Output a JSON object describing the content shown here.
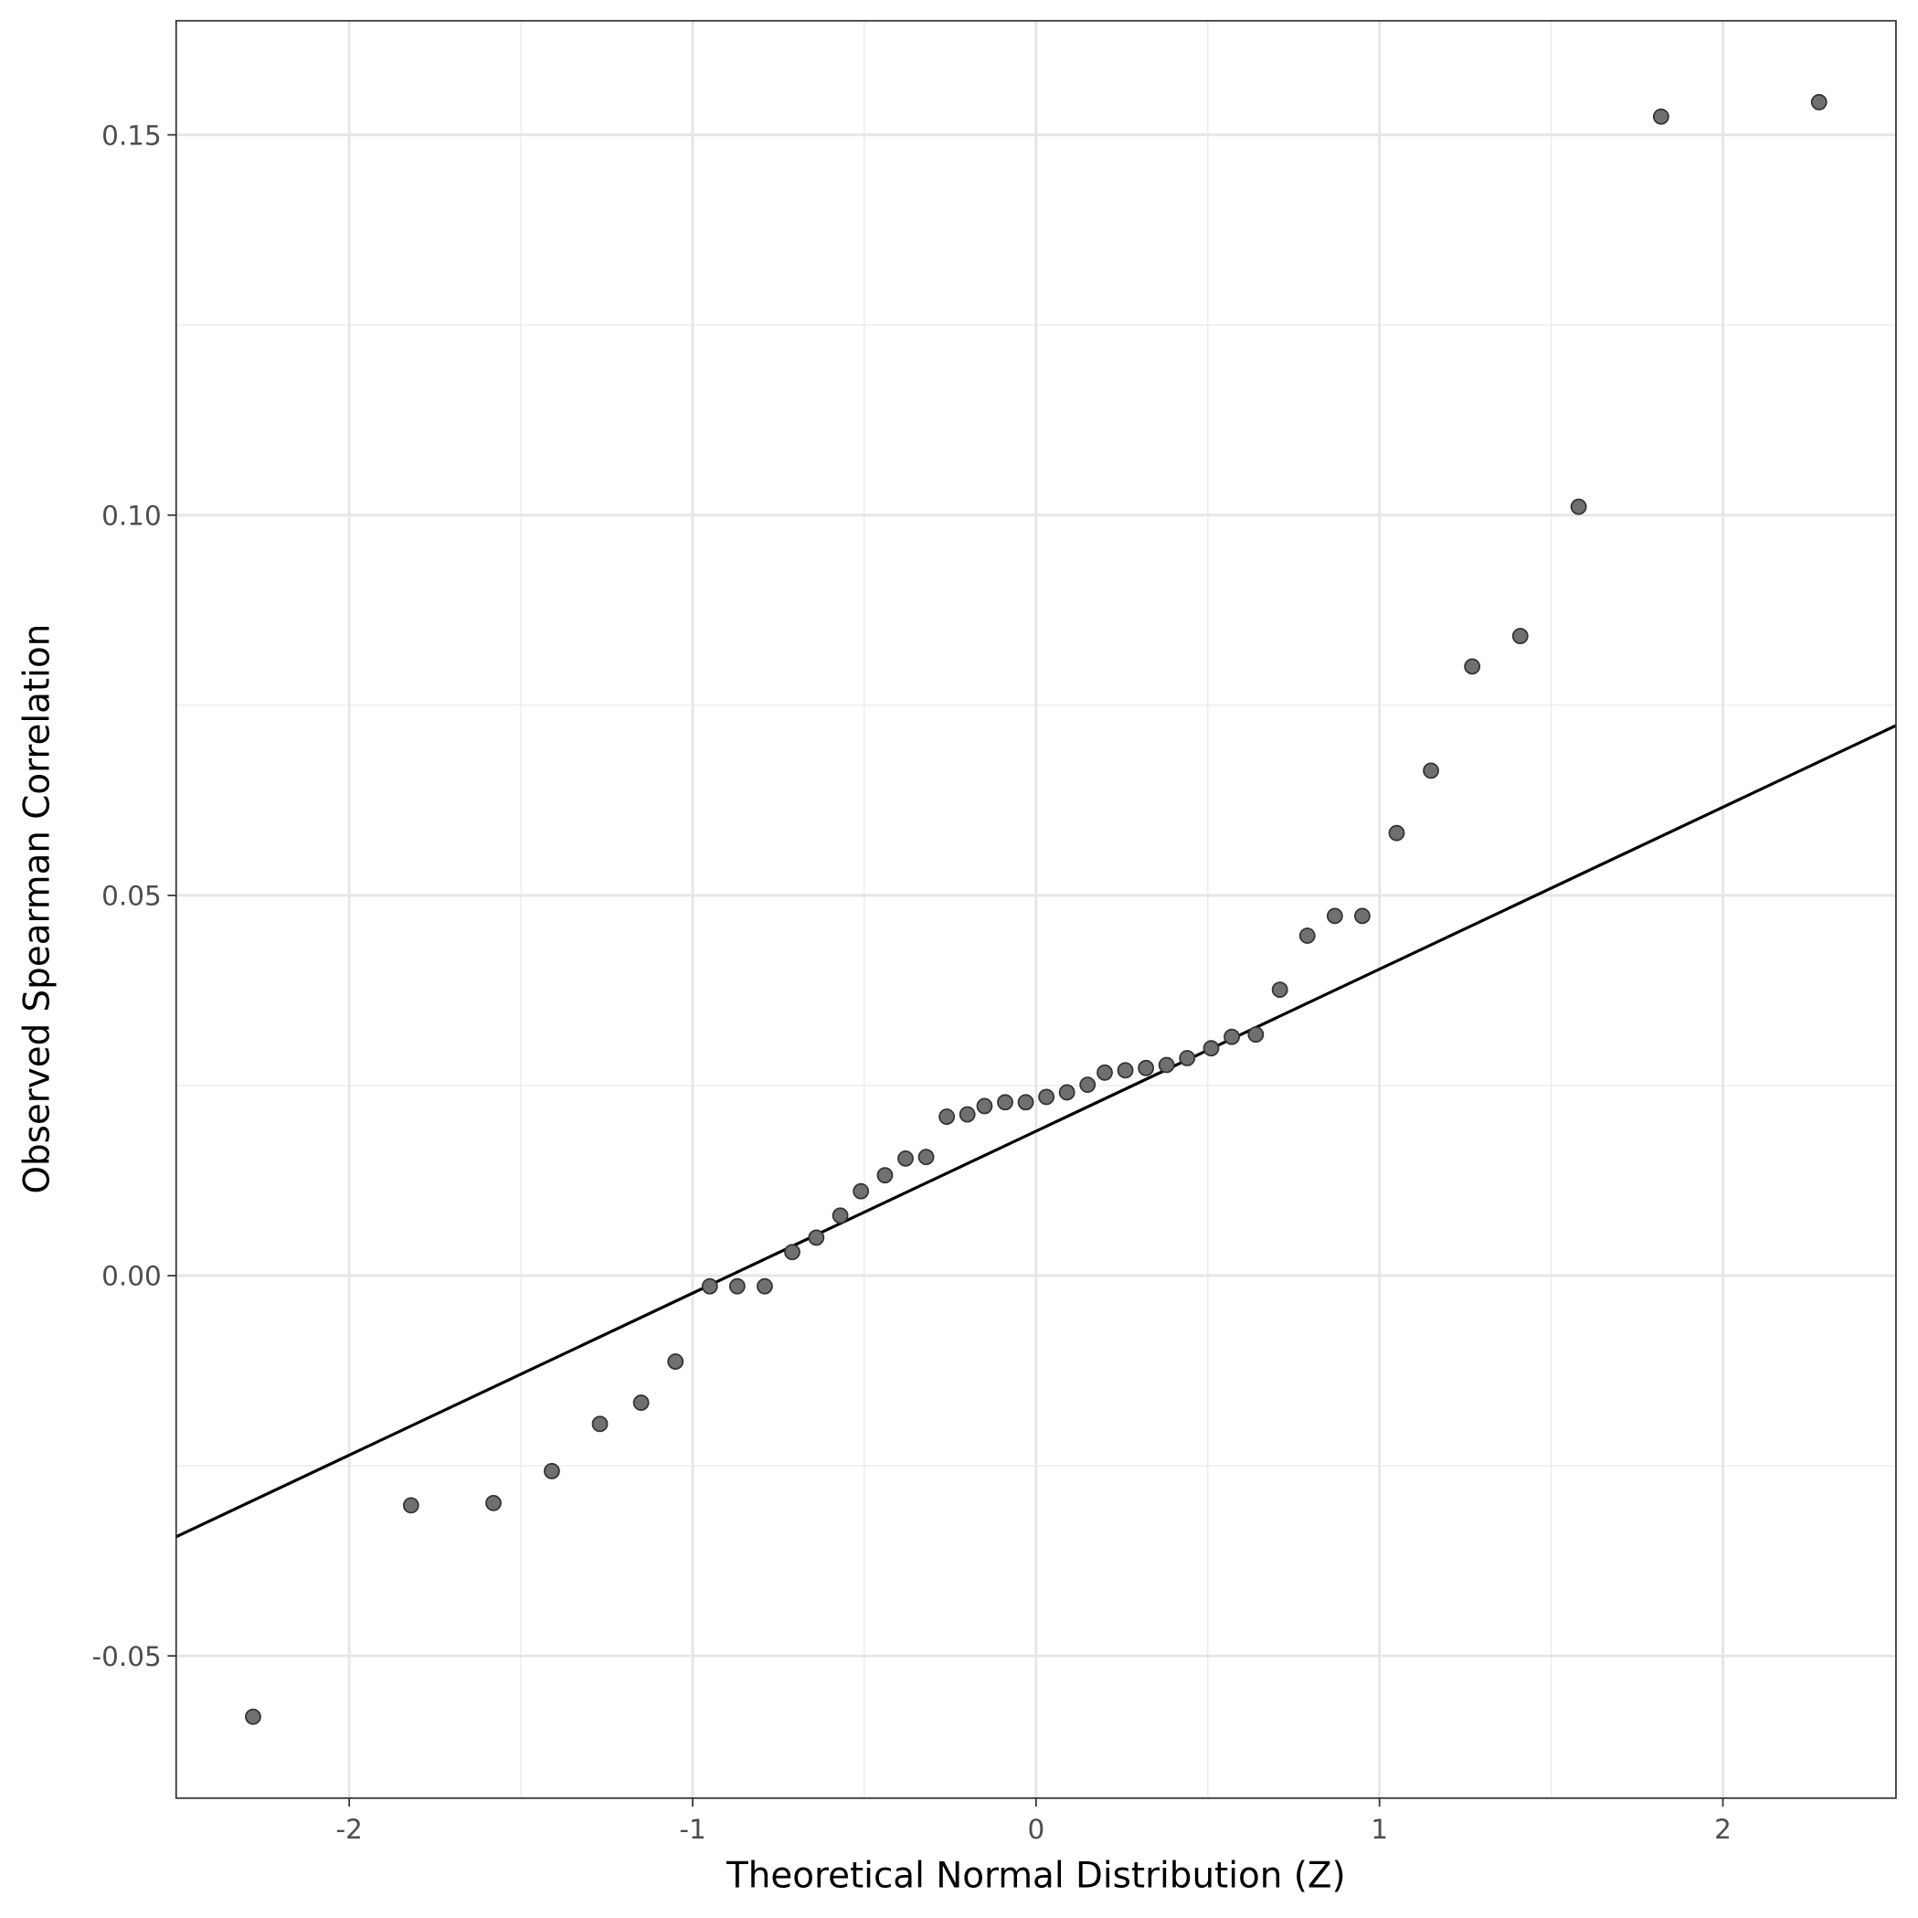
{
  "chart_data": {
    "type": "scatter",
    "title": "",
    "xlabel": "Theoretical Normal Distribution (Z)",
    "ylabel": "Observed Spearman Correlation",
    "xlim": [
      -2.504,
      2.504
    ],
    "ylim": [
      -0.0687,
      0.165
    ],
    "grid": true,
    "x_ticks": [
      -2,
      -1,
      0,
      1,
      2
    ],
    "x_tick_labels": [
      "-2",
      "-1",
      "0",
      "1",
      "2"
    ],
    "y_ticks": [
      -0.05,
      0.0,
      0.05,
      0.1,
      0.15
    ],
    "y_tick_labels": [
      "-0.05",
      "0.00",
      "0.05",
      "0.10",
      "0.15"
    ],
    "point_color": "#707070",
    "reference_line": {
      "slope": 0.0213,
      "intercept": 0.019,
      "color": "#000000"
    },
    "points": [
      [
        -2.28,
        -0.058
      ],
      [
        -1.82,
        -0.0302
      ],
      [
        -1.58,
        -0.0299
      ],
      [
        -1.41,
        -0.0257
      ],
      [
        -1.27,
        -0.0195
      ],
      [
        -1.15,
        -0.0167
      ],
      [
        -1.05,
        -0.0113
      ],
      [
        -0.95,
        -0.0014
      ],
      [
        -0.87,
        -0.0014
      ],
      [
        -0.79,
        -0.0014
      ],
      [
        -0.71,
        0.0031
      ],
      [
        -0.64,
        0.005
      ],
      [
        -0.57,
        0.0079
      ],
      [
        -0.51,
        0.0111
      ],
      [
        -0.44,
        0.0132
      ],
      [
        -0.38,
        0.0154
      ],
      [
        -0.32,
        0.0156
      ],
      [
        -0.26,
        0.0209
      ],
      [
        -0.2,
        0.0212
      ],
      [
        -0.15,
        0.0223
      ],
      [
        -0.09,
        0.0228
      ],
      [
        -0.03,
        0.0228
      ],
      [
        0.03,
        0.0235
      ],
      [
        0.09,
        0.0241
      ],
      [
        0.15,
        0.0251
      ],
      [
        0.2,
        0.0267
      ],
      [
        0.26,
        0.027
      ],
      [
        0.32,
        0.0273
      ],
      [
        0.38,
        0.0277
      ],
      [
        0.44,
        0.0286
      ],
      [
        0.51,
        0.0299
      ],
      [
        0.57,
        0.0314
      ],
      [
        0.64,
        0.0317
      ],
      [
        0.71,
        0.0376
      ],
      [
        0.79,
        0.0447
      ],
      [
        0.87,
        0.0473
      ],
      [
        0.95,
        0.0473
      ],
      [
        1.05,
        0.0582
      ],
      [
        1.15,
        0.0664
      ],
      [
        1.27,
        0.0801
      ],
      [
        1.41,
        0.0841
      ],
      [
        1.58,
        0.1011
      ],
      [
        1.82,
        0.1524
      ],
      [
        2.28,
        0.1543
      ]
    ]
  }
}
